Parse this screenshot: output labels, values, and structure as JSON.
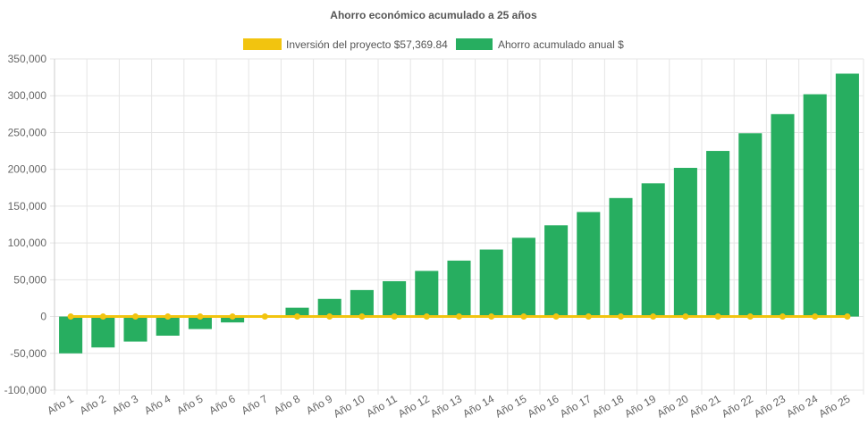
{
  "chart_data": {
    "type": "bar",
    "title": "Ahorro económico acumulado a 25 años",
    "categories": [
      "Año 1",
      "Año 2",
      "Año 3",
      "Año 4",
      "Año 5",
      "Año 6",
      "Año 7",
      "Año 8",
      "Año 9",
      "Año 10",
      "Año 11",
      "Año 12",
      "Año 13",
      "Año 14",
      "Año 15",
      "Año 16",
      "Año 17",
      "Año 18",
      "Año 19",
      "Año 20",
      "Año 21",
      "Año 22",
      "Año 23",
      "Año 24",
      "Año 25"
    ],
    "ylim": [
      -100000,
      350000
    ],
    "yticks": [
      350000,
      300000,
      250000,
      200000,
      150000,
      100000,
      50000,
      0,
      -50000,
      -100000
    ],
    "ytick_labels": [
      "350,000",
      "300,000",
      "250,000",
      "200,000",
      "150,000",
      "100,000",
      "50,000",
      "0",
      "-50,000",
      "-100,000"
    ],
    "grid": true,
    "legend_position": "top",
    "series": [
      {
        "name": "Inversión del proyecto $57,369.84",
        "type": "line",
        "color": "#f2c40f",
        "values": [
          0,
          0,
          0,
          0,
          0,
          0,
          0,
          0,
          0,
          0,
          0,
          0,
          0,
          0,
          0,
          0,
          0,
          0,
          0,
          0,
          0,
          0,
          0,
          0,
          0
        ]
      },
      {
        "name": "Ahorro acumulado anual $",
        "type": "bar",
        "color": "#27ae60",
        "values": [
          -50000,
          -42000,
          -34000,
          -26000,
          -17000,
          -8000,
          0,
          12000,
          24000,
          36000,
          48000,
          62000,
          76000,
          91000,
          107000,
          124000,
          142000,
          161000,
          181000,
          202000,
          225000,
          249000,
          275000,
          302000,
          330000
        ]
      }
    ]
  }
}
